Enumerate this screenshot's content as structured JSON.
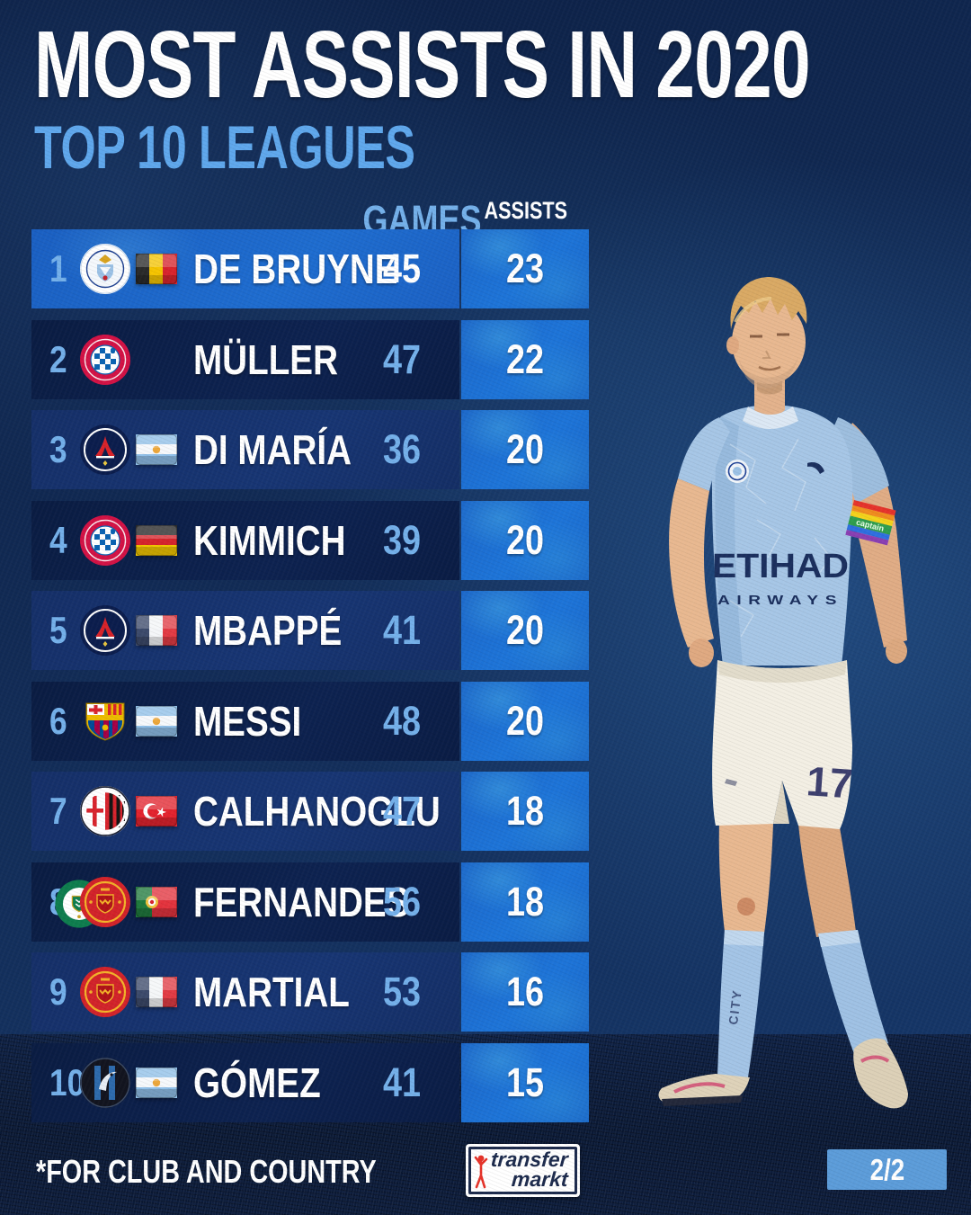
{
  "header": {
    "title": "MOST ASSISTS IN 2020",
    "subtitle": "TOP 10 LEAGUES"
  },
  "table": {
    "headers": {
      "games": "GAMES",
      "assists": "ASSISTS"
    },
    "rows": [
      {
        "rank": "1",
        "club": "manchester-city",
        "club2": null,
        "flag": "belgium",
        "name": "DE BRUYNE",
        "games": "45",
        "assists": "23"
      },
      {
        "rank": "2",
        "club": "bayern-munich",
        "club2": null,
        "flag": null,
        "name": "MÜLLER",
        "games": "47",
        "assists": "22"
      },
      {
        "rank": "3",
        "club": "psg",
        "club2": null,
        "flag": "argentina",
        "name": "DI MARÍA",
        "games": "36",
        "assists": "20"
      },
      {
        "rank": "4",
        "club": "bayern-munich",
        "club2": null,
        "flag": "germany",
        "name": "KIMMICH",
        "games": "39",
        "assists": "20"
      },
      {
        "rank": "5",
        "club": "psg",
        "club2": null,
        "flag": "france",
        "name": "MBAPPÉ",
        "games": "41",
        "assists": "20"
      },
      {
        "rank": "6",
        "club": "barcelona",
        "club2": null,
        "flag": "argentina",
        "name": "MESSI",
        "games": "48",
        "assists": "20"
      },
      {
        "rank": "7",
        "club": "ac-milan",
        "club2": null,
        "flag": "turkey",
        "name": "CALHANOGLU",
        "games": "47",
        "assists": "18"
      },
      {
        "rank": "8",
        "club": "manchester-united",
        "club2": "sporting-cp",
        "flag": "portugal",
        "name": "FERNANDES",
        "games": "56",
        "assists": "18"
      },
      {
        "rank": "9",
        "club": "manchester-united",
        "club2": null,
        "flag": "france",
        "name": "MARTIAL",
        "games": "53",
        "assists": "16"
      },
      {
        "rank": "10",
        "club": "atalanta",
        "club2": null,
        "flag": "argentina",
        "name": "GÓMEZ",
        "games": "41",
        "assists": "15"
      }
    ]
  },
  "player": {
    "shirt_sponsor_line1": "ETIHAD",
    "shirt_sponsor_line2": "AIRWAYS",
    "shorts_number": "17",
    "sock_text": "CITY",
    "armband_text": "captain"
  },
  "footer": {
    "note": "*FOR CLUB AND COUNTRY",
    "logo_line1": "transfer",
    "logo_line2": "markt",
    "page_indicator": "2/2"
  },
  "colors": {
    "background": "#122c57",
    "row_highlight": "#1c64c8",
    "row_medium": "#16336e",
    "row_dark": "#0b1e47",
    "assists_cell": "#1a6fd2",
    "accent_text": "#74b0ea",
    "subtitle": "#5fa7ec",
    "page_badge": "#5c9cd9",
    "logo_red": "#e63228",
    "logo_navy": "#1d2b4d"
  }
}
